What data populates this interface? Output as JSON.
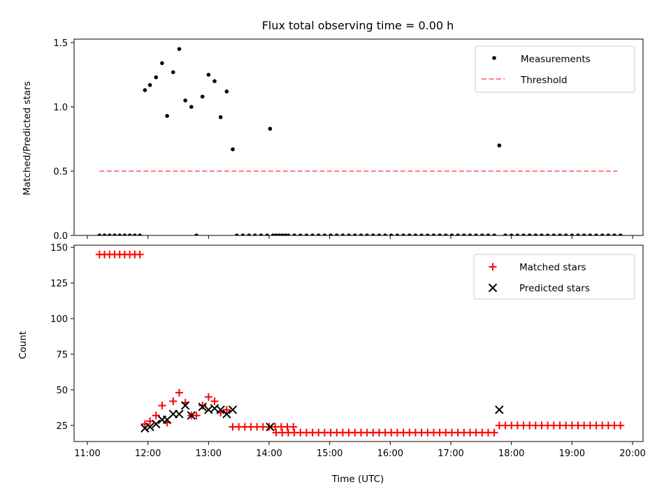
{
  "chart_data": [
    {
      "type": "scatter",
      "title": "Flux total observing time = 0.00 h",
      "ylabel": "Matched/Predicted stars",
      "xlabel": "",
      "xlim": [
        "11:00",
        "20:00"
      ],
      "ylim": [
        0,
        1.5
      ],
      "yticks": [
        "0.0",
        "0.5",
        "1.0",
        "1.5"
      ],
      "xticks": [
        "11:00",
        "12:00",
        "13:00",
        "14:00",
        "15:00",
        "16:00",
        "17:00",
        "18:00",
        "19:00",
        "20:00"
      ],
      "show_xtick_labels": false,
      "grid": false,
      "legend": "top-right",
      "series": [
        {
          "name": "Measurements",
          "kind": "scatter",
          "marker": "dot",
          "color": "#000000",
          "points": [
            [
              "11:12",
              0.0
            ],
            [
              "11:17",
              0.0
            ],
            [
              "11:22",
              0.0
            ],
            [
              "11:27",
              0.0
            ],
            [
              "11:32",
              0.0
            ],
            [
              "11:37",
              0.0
            ],
            [
              "11:42",
              0.0
            ],
            [
              "11:47",
              0.0
            ],
            [
              "11:52",
              0.0
            ],
            [
              "11:57",
              1.13
            ],
            [
              "12:02",
              1.17
            ],
            [
              "12:08",
              1.23
            ],
            [
              "12:14",
              1.34
            ],
            [
              "12:19",
              0.93
            ],
            [
              "12:25",
              1.27
            ],
            [
              "12:31",
              1.45
            ],
            [
              "12:37",
              1.05
            ],
            [
              "12:43",
              1.0
            ],
            [
              "12:48",
              0.0
            ],
            [
              "12:54",
              1.08
            ],
            [
              "13:00",
              1.25
            ],
            [
              "13:06",
              1.2
            ],
            [
              "13:12",
              0.92
            ],
            [
              "13:18",
              1.12
            ],
            [
              "13:24",
              0.67
            ],
            [
              "13:28",
              0.0
            ],
            [
              "13:34",
              0.0
            ],
            [
              "13:40",
              0.0
            ],
            [
              "13:46",
              0.0
            ],
            [
              "13:52",
              0.0
            ],
            [
              "13:58",
              0.0
            ],
            [
              "14:04",
              0.0
            ],
            [
              "14:10",
              0.0
            ],
            [
              "14:16",
              0.0
            ],
            [
              "14:01",
              0.83
            ],
            [
              "14:07",
              0.0
            ],
            [
              "14:13",
              0.0
            ],
            [
              "14:19",
              0.0
            ],
            [
              "14:25",
              0.0
            ],
            [
              "14:31",
              0.0
            ],
            [
              "14:37",
              0.0
            ],
            [
              "14:43",
              0.0
            ],
            [
              "14:49",
              0.0
            ],
            [
              "14:55",
              0.0
            ],
            [
              "15:01",
              0.0
            ],
            [
              "15:07",
              0.0
            ],
            [
              "15:13",
              0.0
            ],
            [
              "15:19",
              0.0
            ],
            [
              "15:25",
              0.0
            ],
            [
              "15:31",
              0.0
            ],
            [
              "15:37",
              0.0
            ],
            [
              "15:43",
              0.0
            ],
            [
              "15:49",
              0.0
            ],
            [
              "15:55",
              0.0
            ],
            [
              "16:01",
              0.0
            ],
            [
              "16:07",
              0.0
            ],
            [
              "16:13",
              0.0
            ],
            [
              "16:19",
              0.0
            ],
            [
              "16:25",
              0.0
            ],
            [
              "16:31",
              0.0
            ],
            [
              "16:37",
              0.0
            ],
            [
              "16:43",
              0.0
            ],
            [
              "16:49",
              0.0
            ],
            [
              "16:55",
              0.0
            ],
            [
              "17:01",
              0.0
            ],
            [
              "17:07",
              0.0
            ],
            [
              "17:13",
              0.0
            ],
            [
              "17:19",
              0.0
            ],
            [
              "17:25",
              0.0
            ],
            [
              "17:31",
              0.0
            ],
            [
              "17:37",
              0.0
            ],
            [
              "17:43",
              0.0
            ],
            [
              "17:48",
              0.7
            ],
            [
              "17:54",
              0.0
            ],
            [
              "18:00",
              0.0
            ],
            [
              "18:06",
              0.0
            ],
            [
              "18:12",
              0.0
            ],
            [
              "18:18",
              0.0
            ],
            [
              "18:24",
              0.0
            ],
            [
              "18:30",
              0.0
            ],
            [
              "18:36",
              0.0
            ],
            [
              "18:42",
              0.0
            ],
            [
              "18:48",
              0.0
            ],
            [
              "18:54",
              0.0
            ],
            [
              "19:00",
              0.0
            ],
            [
              "19:06",
              0.0
            ],
            [
              "19:12",
              0.0
            ],
            [
              "19:18",
              0.0
            ],
            [
              "19:24",
              0.0
            ],
            [
              "19:30",
              0.0
            ],
            [
              "19:36",
              0.0
            ],
            [
              "19:42",
              0.0
            ],
            [
              "19:48",
              0.0
            ]
          ]
        },
        {
          "name": "Threshold",
          "kind": "line",
          "style": "dashed",
          "color": "#ff7f7f",
          "points": [
            [
              "11:12",
              0.5
            ],
            [
              "19:45",
              0.5
            ]
          ]
        }
      ]
    },
    {
      "type": "scatter",
      "title": "",
      "ylabel": "Count",
      "xlabel": "Time (UTC)",
      "xlim": [
        "11:00",
        "20:00"
      ],
      "ylim": [
        15,
        150
      ],
      "yticks": [
        "25",
        "50",
        "75",
        "100",
        "125",
        "150"
      ],
      "xticks": [
        "11:00",
        "12:00",
        "13:00",
        "14:00",
        "15:00",
        "16:00",
        "17:00",
        "18:00",
        "19:00",
        "20:00"
      ],
      "show_xtick_labels": true,
      "grid": false,
      "legend": "top-right",
      "series": [
        {
          "name": "Matched stars",
          "kind": "scatter",
          "marker": "plus",
          "color": "#ff0000",
          "points": [
            [
              "11:12",
              145
            ],
            [
              "11:17",
              145
            ],
            [
              "11:22",
              145
            ],
            [
              "11:27",
              145
            ],
            [
              "11:32",
              145
            ],
            [
              "11:37",
              145
            ],
            [
              "11:42",
              145
            ],
            [
              "11:47",
              145
            ],
            [
              "11:52",
              145
            ],
            [
              "11:57",
              26
            ],
            [
              "12:02",
              28
            ],
            [
              "12:08",
              32
            ],
            [
              "12:14",
              39
            ],
            [
              "12:19",
              27
            ],
            [
              "12:25",
              42
            ],
            [
              "12:31",
              48
            ],
            [
              "12:37",
              41
            ],
            [
              "12:43",
              32
            ],
            [
              "12:48",
              32
            ],
            [
              "12:54",
              39
            ],
            [
              "13:00",
              45
            ],
            [
              "13:06",
              42
            ],
            [
              "13:12",
              34
            ],
            [
              "13:18",
              36
            ],
            [
              "13:24",
              24
            ],
            [
              "13:30",
              24
            ],
            [
              "13:36",
              24
            ],
            [
              "13:42",
              24
            ],
            [
              "13:48",
              24
            ],
            [
              "13:54",
              24
            ],
            [
              "14:00",
              24
            ],
            [
              "14:06",
              24
            ],
            [
              "14:12",
              24
            ],
            [
              "14:18",
              24
            ],
            [
              "14:24",
              24
            ],
            [
              "14:07",
              20
            ],
            [
              "14:13",
              20
            ],
            [
              "14:19",
              20
            ],
            [
              "14:25",
              20
            ],
            [
              "14:31",
              20
            ],
            [
              "14:37",
              20
            ],
            [
              "14:43",
              20
            ],
            [
              "14:49",
              20
            ],
            [
              "14:55",
              20
            ],
            [
              "15:01",
              20
            ],
            [
              "15:07",
              20
            ],
            [
              "15:13",
              20
            ],
            [
              "15:19",
              20
            ],
            [
              "15:25",
              20
            ],
            [
              "15:31",
              20
            ],
            [
              "15:37",
              20
            ],
            [
              "15:43",
              20
            ],
            [
              "15:49",
              20
            ],
            [
              "15:55",
              20
            ],
            [
              "16:01",
              20
            ],
            [
              "16:07",
              20
            ],
            [
              "16:13",
              20
            ],
            [
              "16:19",
              20
            ],
            [
              "16:25",
              20
            ],
            [
              "16:31",
              20
            ],
            [
              "16:37",
              20
            ],
            [
              "16:43",
              20
            ],
            [
              "16:49",
              20
            ],
            [
              "16:55",
              20
            ],
            [
              "17:01",
              20
            ],
            [
              "17:07",
              20
            ],
            [
              "17:13",
              20
            ],
            [
              "17:19",
              20
            ],
            [
              "17:25",
              20
            ],
            [
              "17:31",
              20
            ],
            [
              "17:37",
              20
            ],
            [
              "17:43",
              20
            ],
            [
              "17:48",
              25
            ],
            [
              "17:54",
              25
            ],
            [
              "18:00",
              25
            ],
            [
              "18:06",
              25
            ],
            [
              "18:12",
              25
            ],
            [
              "18:18",
              25
            ],
            [
              "18:24",
              25
            ],
            [
              "18:30",
              25
            ],
            [
              "18:36",
              25
            ],
            [
              "18:42",
              25
            ],
            [
              "18:48",
              25
            ],
            [
              "18:54",
              25
            ],
            [
              "19:00",
              25
            ],
            [
              "19:06",
              25
            ],
            [
              "19:12",
              25
            ],
            [
              "19:18",
              25
            ],
            [
              "19:24",
              25
            ],
            [
              "19:30",
              25
            ],
            [
              "19:36",
              25
            ],
            [
              "19:42",
              25
            ],
            [
              "19:48",
              25
            ]
          ]
        },
        {
          "name": "Predicted stars",
          "kind": "scatter",
          "marker": "x",
          "color": "#000000",
          "points": [
            [
              "11:57",
              23
            ],
            [
              "12:02",
              24
            ],
            [
              "12:08",
              26
            ],
            [
              "12:14",
              29
            ],
            [
              "12:19",
              29
            ],
            [
              "12:25",
              33
            ],
            [
              "12:31",
              33
            ],
            [
              "12:37",
              39
            ],
            [
              "12:43",
              32
            ],
            [
              "12:54",
              38
            ],
            [
              "13:00",
              36
            ],
            [
              "13:06",
              37
            ],
            [
              "13:12",
              36
            ],
            [
              "13:18",
              33
            ],
            [
              "13:24",
              36
            ],
            [
              "14:01",
              24
            ],
            [
              "17:48",
              36
            ]
          ]
        }
      ]
    }
  ]
}
